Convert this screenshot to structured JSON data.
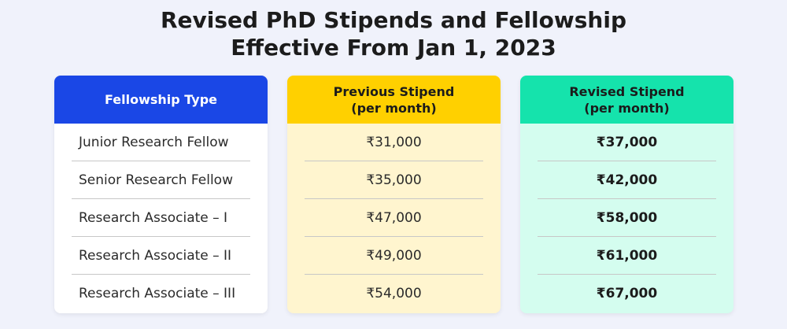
{
  "title": {
    "line1": "Revised PhD Stipends and Fellowship",
    "line2": "Effective From Jan 1, 2023"
  },
  "columns": [
    {
      "header_line1": "Fellowship Type",
      "header_line2": "",
      "color": "#1a47e6"
    },
    {
      "header_line1": "Previous Stipend",
      "header_line2": "(per month)",
      "color": "#ffd000"
    },
    {
      "header_line1": "Revised Stipend",
      "header_line2": "(per month)",
      "color": "#15e3ac"
    }
  ],
  "rows": [
    {
      "type": "Junior Research Fellow",
      "previous": "₹31,000",
      "revised": "₹37,000"
    },
    {
      "type": "Senior Research Fellow",
      "previous": "₹35,000",
      "revised": "₹42,000"
    },
    {
      "type": "Research Associate – I",
      "previous": "₹47,000",
      "revised": "₹58,000"
    },
    {
      "type": "Research Associate – II",
      "previous": "₹49,000",
      "revised": "₹61,000"
    },
    {
      "type": "Research Associate – III",
      "previous": "₹54,000",
      "revised": "₹67,000"
    }
  ]
}
